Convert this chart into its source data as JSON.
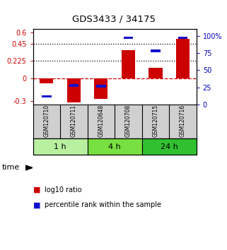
{
  "title": "GDS3433 / 34175",
  "samples": [
    "GSM120710",
    "GSM120711",
    "GSM120648",
    "GSM120708",
    "GSM120715",
    "GSM120716"
  ],
  "log10_ratio": [
    -0.07,
    -0.32,
    -0.27,
    0.37,
    0.14,
    0.52
  ],
  "percentile_rank_pct": [
    12,
    28,
    27,
    97,
    78,
    97
  ],
  "time_groups": [
    {
      "label": "1 h",
      "color": "#b8f0a0"
    },
    {
      "label": "4 h",
      "color": "#78e040"
    },
    {
      "label": "24 h",
      "color": "#30c030"
    }
  ],
  "group_sizes": [
    2,
    2,
    2
  ],
  "ylim_left": [
    -0.35,
    0.65
  ],
  "ylim_right": [
    0,
    110
  ],
  "yticks_left": [
    -0.3,
    0,
    0.225,
    0.45,
    0.6
  ],
  "yticks_right": [
    0,
    25,
    50,
    75,
    100
  ],
  "hlines": [
    0.225,
    0.45
  ],
  "bar_color_red": "#cc0000",
  "bar_color_blue": "#1010cc",
  "bar_width": 0.5,
  "zero_line_color": "#cc0000",
  "background_color": "#ffffff",
  "legend_red_label": "log10 ratio",
  "legend_blue_label": "percentile rank within the sample",
  "time_label": "time",
  "right_axis_color": "#0000bb",
  "left_axis_color": "#cc0000",
  "sample_panel_color": "#d0d0d0",
  "tick_fontsize": 7,
  "label_fontsize": 5.5,
  "time_fontsize": 8,
  "legend_fontsize": 7
}
